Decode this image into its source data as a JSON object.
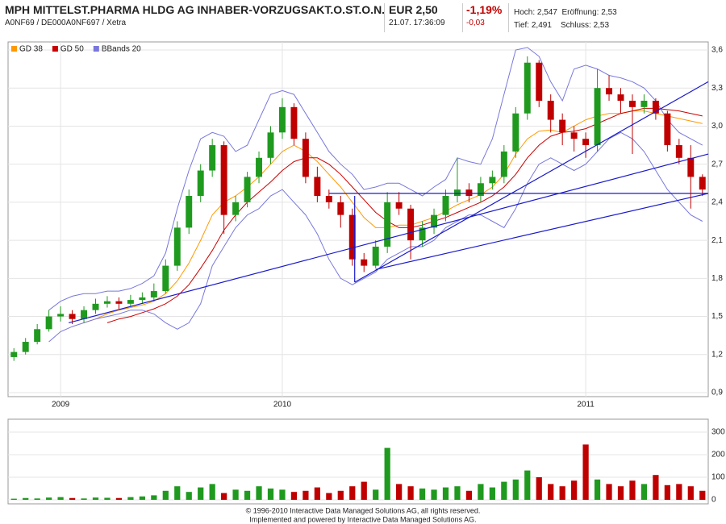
{
  "header": {
    "title": "MPH MITTELST.PHARMA HLDG AG INHABER-VORZUGSAKT.O.ST.O.N.",
    "subtitle": "A0NF69 / DE000A0NF697 / Xetra",
    "price": "EUR 2,50",
    "time": "21.07. 17:36:09",
    "change_pct": "-1,19%",
    "change_abs": "-0,03",
    "high_label": "Hoch:",
    "high": "2,547",
    "open_label": "Eröffnung:",
    "open": "2,53",
    "low_label": "Tief:",
    "low": "2,491",
    "close_label": "Schluss:",
    "close": "2,53"
  },
  "chart_data": [
    {
      "type": "candlestick",
      "categories": [
        null,
        null,
        null,
        null,
        "2009",
        null,
        null,
        null,
        null,
        null,
        null,
        null,
        null,
        null,
        null,
        null,
        null,
        null,
        null,
        null,
        null,
        null,
        null,
        "2010",
        null,
        null,
        null,
        null,
        null,
        null,
        null,
        null,
        null,
        null,
        null,
        null,
        null,
        null,
        null,
        null,
        null,
        null,
        null,
        null,
        null,
        null,
        null,
        null,
        null,
        "2011",
        null,
        null,
        null,
        null,
        null,
        null,
        null,
        null,
        null,
        null
      ],
      "open": [
        1.18,
        1.22,
        1.3,
        1.4,
        1.5,
        1.52,
        1.48,
        1.55,
        1.6,
        1.62,
        1.6,
        1.63,
        1.65,
        1.7,
        1.9,
        2.2,
        2.45,
        2.65,
        2.85,
        2.3,
        2.4,
        2.6,
        2.75,
        2.95,
        3.15,
        2.9,
        2.6,
        2.45,
        2.4,
        2.3,
        1.95,
        1.9,
        2.05,
        2.4,
        2.35,
        2.1,
        2.2,
        2.3,
        2.45,
        2.5,
        2.45,
        2.55,
        2.6,
        2.8,
        3.1,
        3.5,
        3.2,
        3.05,
        2.95,
        2.9,
        2.85,
        3.3,
        3.25,
        3.2,
        3.15,
        3.2,
        3.1,
        2.85,
        2.75,
        2.6
      ],
      "high": [
        1.25,
        1.33,
        1.44,
        1.55,
        1.58,
        1.55,
        1.58,
        1.64,
        1.66,
        1.65,
        1.67,
        1.69,
        1.76,
        1.95,
        2.25,
        2.5,
        2.7,
        2.9,
        2.88,
        2.45,
        2.64,
        2.8,
        3.0,
        3.22,
        3.18,
        2.95,
        2.68,
        2.5,
        2.45,
        2.35,
        2.0,
        2.1,
        2.48,
        2.48,
        2.38,
        2.25,
        2.35,
        2.5,
        2.75,
        2.55,
        2.6,
        2.65,
        2.85,
        3.15,
        3.55,
        3.52,
        3.25,
        3.1,
        3.0,
        2.95,
        3.45,
        3.4,
        3.3,
        3.25,
        3.25,
        3.22,
        3.12,
        2.9,
        2.85,
        2.62
      ],
      "low": [
        1.15,
        1.2,
        1.28,
        1.38,
        1.46,
        1.44,
        1.45,
        1.52,
        1.57,
        1.56,
        1.58,
        1.6,
        1.62,
        1.68,
        1.86,
        2.15,
        2.4,
        2.6,
        2.15,
        2.25,
        2.36,
        2.55,
        2.7,
        2.9,
        2.85,
        2.55,
        2.4,
        2.35,
        2.2,
        1.9,
        1.85,
        1.88,
        2.0,
        2.3,
        1.95,
        2.05,
        2.15,
        2.25,
        2.4,
        2.4,
        2.4,
        2.5,
        2.55,
        2.75,
        3.05,
        3.15,
        2.95,
        2.85,
        2.8,
        2.75,
        2.8,
        3.2,
        3.1,
        2.78,
        3.1,
        3.05,
        2.8,
        2.7,
        2.35,
        2.45
      ],
      "close": [
        1.22,
        1.3,
        1.4,
        1.5,
        1.52,
        1.48,
        1.55,
        1.6,
        1.62,
        1.6,
        1.63,
        1.65,
        1.7,
        1.9,
        2.2,
        2.45,
        2.65,
        2.85,
        2.3,
        2.4,
        2.6,
        2.75,
        2.95,
        3.15,
        2.9,
        2.6,
        2.45,
        2.4,
        2.3,
        1.95,
        1.9,
        2.05,
        2.4,
        2.35,
        2.1,
        2.2,
        2.3,
        2.45,
        2.5,
        2.45,
        2.55,
        2.6,
        2.8,
        3.1,
        3.5,
        3.2,
        3.05,
        2.95,
        2.9,
        2.85,
        3.3,
        3.25,
        3.2,
        3.15,
        3.2,
        3.1,
        2.85,
        2.75,
        2.6,
        2.5
      ],
      "up_color": "#1f9a1f",
      "down_color": "#c00000",
      "overlays": [
        {
          "name": "GD 38",
          "color": "#ff9900",
          "values": [
            null,
            null,
            null,
            null,
            null,
            null,
            1.45,
            1.48,
            1.52,
            1.55,
            1.57,
            1.59,
            1.62,
            1.68,
            1.78,
            1.92,
            2.1,
            2.3,
            2.4,
            2.45,
            2.52,
            2.6,
            2.7,
            2.8,
            2.85,
            2.8,
            2.72,
            2.62,
            2.52,
            2.4,
            2.28,
            2.2,
            2.2,
            2.22,
            2.22,
            2.25,
            2.28,
            2.33,
            2.38,
            2.42,
            2.46,
            2.52,
            2.62,
            2.78,
            2.9,
            2.96,
            2.97,
            2.95,
            3.0,
            3.05,
            3.08,
            3.1,
            3.1,
            3.12,
            3.12,
            3.1,
            3.08,
            3.06,
            3.04,
            3.02
          ]
        },
        {
          "name": "GD 50",
          "color": "#cc0000",
          "values": [
            null,
            null,
            null,
            null,
            null,
            null,
            null,
            null,
            1.45,
            1.48,
            1.5,
            1.53,
            1.56,
            1.6,
            1.66,
            1.75,
            1.88,
            2.02,
            2.18,
            2.3,
            2.4,
            2.48,
            2.56,
            2.65,
            2.72,
            2.75,
            2.75,
            2.7,
            2.62,
            2.52,
            2.42,
            2.32,
            2.25,
            2.2,
            2.2,
            2.22,
            2.25,
            2.28,
            2.32,
            2.36,
            2.4,
            2.45,
            2.52,
            2.62,
            2.75,
            2.85,
            2.92,
            2.95,
            2.96,
            2.98,
            3.02,
            3.06,
            3.1,
            3.12,
            3.14,
            3.14,
            3.13,
            3.12,
            3.1,
            3.08
          ]
        },
        {
          "name": "BBands 20",
          "color": "#7777dd",
          "bands": true,
          "upper": [
            null,
            null,
            null,
            1.55,
            1.62,
            1.66,
            1.68,
            1.68,
            1.7,
            1.7,
            1.72,
            1.76,
            1.82,
            2.0,
            2.35,
            2.65,
            2.9,
            2.95,
            2.92,
            2.8,
            2.85,
            3.05,
            3.25,
            3.28,
            3.25,
            3.1,
            2.95,
            2.8,
            2.7,
            2.62,
            2.5,
            2.52,
            2.55,
            2.55,
            2.5,
            2.45,
            2.52,
            2.58,
            2.75,
            2.72,
            2.7,
            2.9,
            3.25,
            3.6,
            3.62,
            3.55,
            3.35,
            3.2,
            3.45,
            3.48,
            3.45,
            3.4,
            3.38,
            3.35,
            3.3,
            3.2,
            3.05,
            2.95,
            2.9,
            2.85
          ],
          "lower": [
            null,
            null,
            null,
            1.3,
            1.38,
            1.42,
            1.45,
            1.48,
            1.5,
            1.52,
            1.55,
            1.55,
            1.52,
            1.45,
            1.4,
            1.45,
            1.6,
            1.9,
            2.05,
            2.2,
            2.3,
            2.35,
            2.45,
            2.5,
            2.4,
            2.3,
            2.15,
            1.95,
            1.8,
            1.75,
            1.8,
            1.85,
            1.95,
            2.0,
            2.05,
            2.05,
            2.1,
            2.2,
            2.25,
            2.3,
            2.3,
            2.25,
            2.2,
            2.35,
            2.55,
            2.7,
            2.75,
            2.7,
            2.65,
            2.7,
            2.8,
            2.9,
            2.95,
            2.9,
            2.8,
            2.65,
            2.5,
            2.4,
            2.3,
            2.25
          ]
        }
      ],
      "trend_lines": [
        {
          "x": [
            4.7,
            59.5
          ],
          "y": [
            1.45,
            2.78
          ]
        },
        {
          "x": [
            29.2,
            59.5
          ],
          "y": [
            1.77,
            3.35
          ]
        },
        {
          "x": [
            31,
            59.5
          ],
          "y": [
            1.87,
            2.47
          ]
        },
        {
          "x": [
            27,
            59.5
          ],
          "y": [
            2.47,
            2.47
          ]
        },
        {
          "x": [
            29.2,
            29.2
          ],
          "y": [
            2.45,
            1.77
          ]
        }
      ],
      "trend_color": "#1a1acc",
      "ylim": [
        0.9,
        3.6
      ],
      "yticks": [
        {
          "value": 0.9,
          "label": "0,9"
        },
        {
          "value": 1.2,
          "label": "1,2"
        },
        {
          "value": 1.5,
          "label": "1,5"
        },
        {
          "value": 1.8,
          "label": "1,8"
        },
        {
          "value": 2.1,
          "label": "2,1"
        },
        {
          "value": 2.4,
          "label": "2,4"
        },
        {
          "value": 2.7,
          "label": "2,7"
        },
        {
          "value": 3.0,
          "label": "3,0"
        },
        {
          "value": 3.3,
          "label": "3,3"
        },
        {
          "value": 3.6,
          "label": "3,6"
        }
      ],
      "grid": true
    },
    {
      "type": "bar",
      "values": [
        5,
        8,
        6,
        10,
        12,
        8,
        6,
        10,
        9,
        8,
        12,
        15,
        20,
        40,
        60,
        35,
        55,
        70,
        30,
        45,
        40,
        60,
        50,
        45,
        35,
        40,
        55,
        30,
        40,
        60,
        80,
        45,
        230,
        70,
        60,
        50,
        45,
        55,
        60,
        40,
        70,
        55,
        80,
        90,
        130,
        100,
        70,
        60,
        85,
        245,
        90,
        70,
        60,
        85,
        70,
        110,
        65,
        70,
        60,
        40
      ],
      "ylim": [
        0,
        300
      ],
      "yticks": [
        0,
        100,
        200,
        300
      ],
      "grid": true
    }
  ],
  "footer": [
    "© 1996-2010 Interactive Data Managed Solutions AG, all rights reserved.",
    "Implemented and powered by Interactive Data Managed Solutions AG."
  ]
}
